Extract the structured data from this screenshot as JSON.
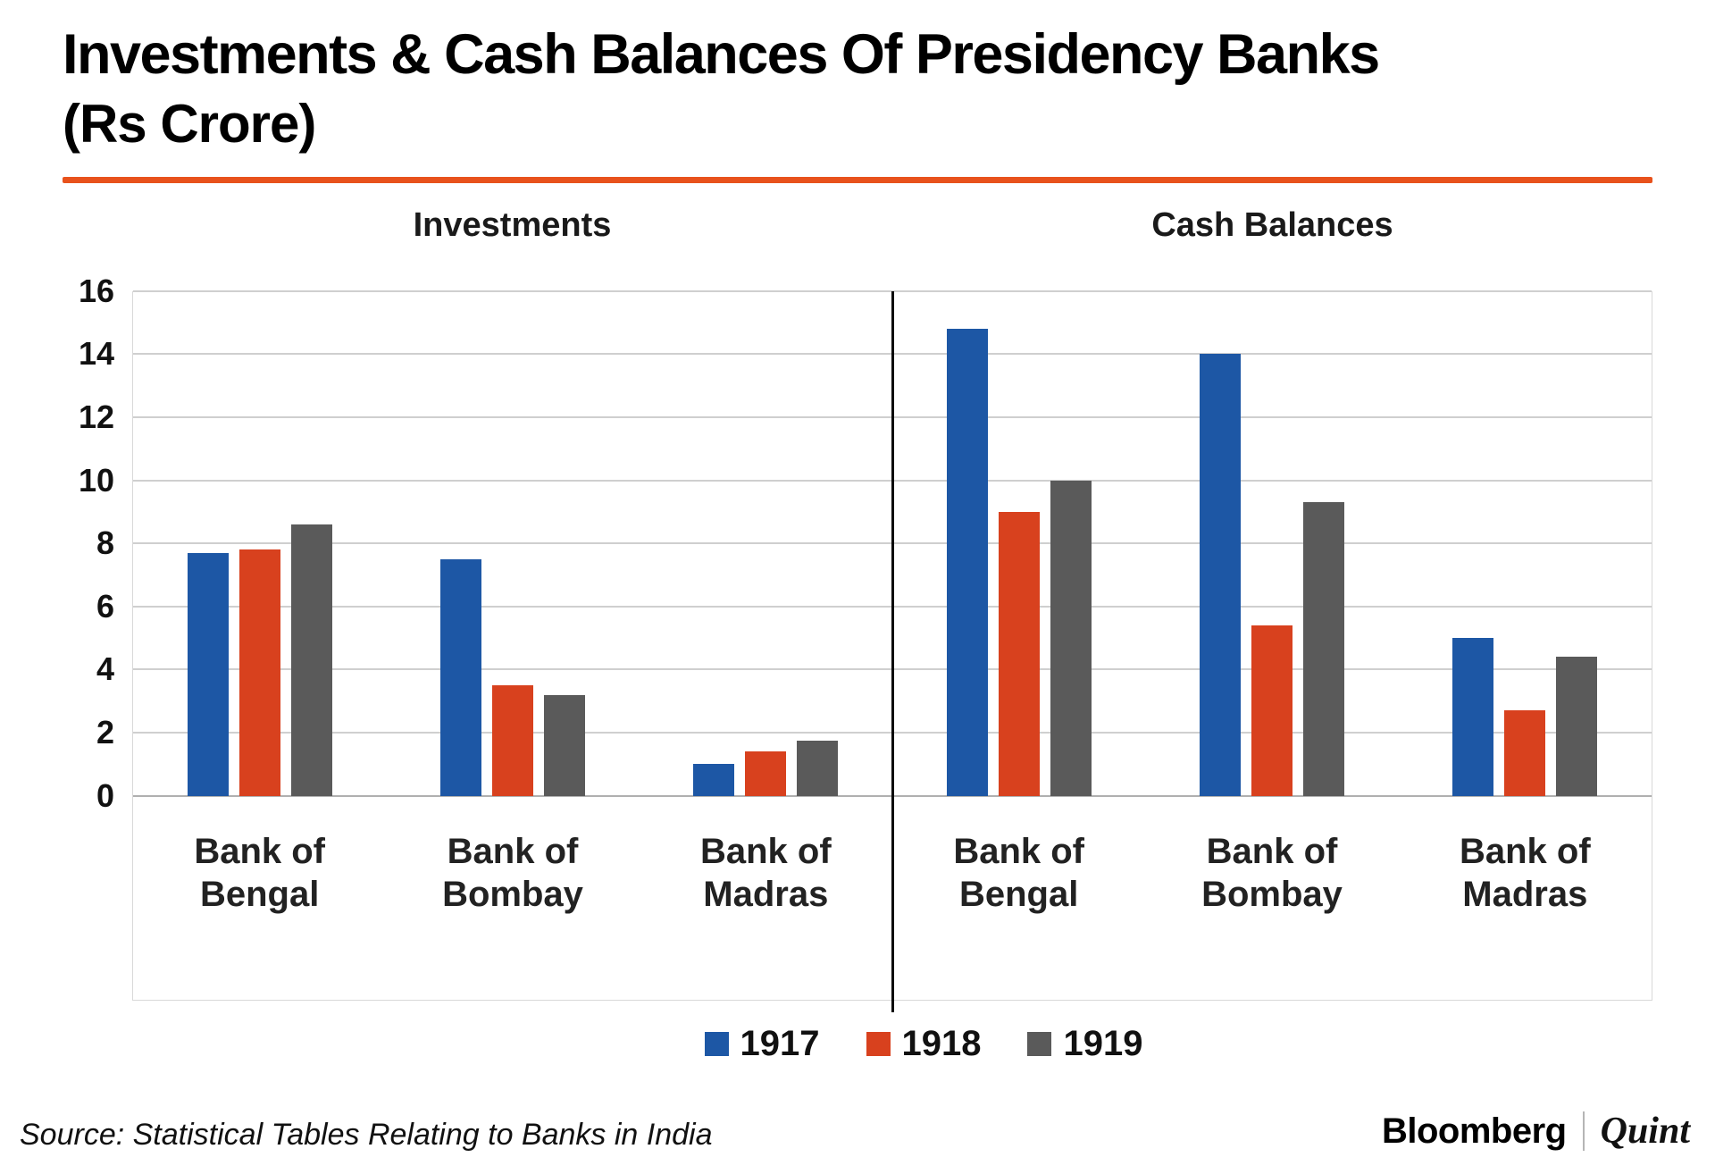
{
  "title": "Investments & Cash Balances Of Presidency Banks",
  "subtitle": "(Rs Crore)",
  "source": "Source: Statistical Tables Relating to Banks in India",
  "branding": {
    "bloomberg": "Bloomberg",
    "quint": "Quint"
  },
  "colors": {
    "series_1917": "#1d57a5",
    "series_1918": "#d8411e",
    "series_1919": "#5a5a5a",
    "title_rule": "#e8521c",
    "gridline": "#cfcfcf",
    "panel_divider": "#0b0b0b"
  },
  "chart_data": [
    {
      "type": "bar",
      "title": "Investments",
      "categories": [
        "Bank of Bengal",
        "Bank of Bombay",
        "Bank of Madras"
      ],
      "series": [
        {
          "name": "1917",
          "color": "#1d57a5",
          "values": [
            7.7,
            7.5,
            1.0
          ]
        },
        {
          "name": "1918",
          "color": "#d8411e",
          "values": [
            7.8,
            3.5,
            1.4
          ]
        },
        {
          "name": "1919",
          "color": "#5a5a5a",
          "values": [
            8.6,
            3.2,
            1.75
          ]
        }
      ],
      "xlabel": "",
      "ylabel": "",
      "ylim": [
        0,
        16
      ],
      "yticks": [
        0,
        2,
        4,
        6,
        8,
        10,
        12,
        14,
        16
      ],
      "grid": true,
      "legend_position": "bottom"
    },
    {
      "type": "bar",
      "title": "Cash Balances",
      "categories": [
        "Bank of Bengal",
        "Bank of Bombay",
        "Bank of Madras"
      ],
      "series": [
        {
          "name": "1917",
          "color": "#1d57a5",
          "values": [
            14.8,
            14.0,
            5.0
          ]
        },
        {
          "name": "1918",
          "color": "#d8411e",
          "values": [
            9.0,
            5.4,
            2.7
          ]
        },
        {
          "name": "1919",
          "color": "#5a5a5a",
          "values": [
            10.0,
            9.3,
            4.4
          ]
        }
      ],
      "xlabel": "",
      "ylabel": "",
      "ylim": [
        0,
        16
      ],
      "yticks": [
        0,
        2,
        4,
        6,
        8,
        10,
        12,
        14,
        16
      ],
      "grid": true,
      "legend_position": "bottom"
    }
  ]
}
